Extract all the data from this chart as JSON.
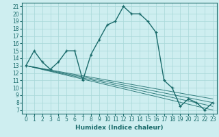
{
  "xlabel": "Humidex (Indice chaleur)",
  "bg_color": "#ceeef0",
  "line_color": "#1a6b6b",
  "grid_color": "#a8d8d8",
  "xlim": [
    -0.5,
    23.5
  ],
  "ylim": [
    6.5,
    21.5
  ],
  "xticks": [
    0,
    1,
    2,
    3,
    4,
    5,
    6,
    7,
    8,
    9,
    10,
    11,
    12,
    13,
    14,
    15,
    16,
    17,
    18,
    19,
    20,
    21,
    22,
    23
  ],
  "yticks": [
    7,
    8,
    9,
    10,
    11,
    12,
    13,
    14,
    15,
    16,
    17,
    18,
    19,
    20,
    21
  ],
  "series": [
    [
      0,
      13
    ],
    [
      1,
      15
    ],
    [
      2,
      13.5
    ],
    [
      3,
      12.5
    ],
    [
      4,
      13.5
    ],
    [
      5,
      15
    ],
    [
      6,
      15
    ],
    [
      7,
      11
    ],
    [
      8,
      14.5
    ],
    [
      9,
      16.5
    ],
    [
      10,
      18.5
    ],
    [
      11,
      19
    ],
    [
      12,
      21
    ],
    [
      13,
      20
    ],
    [
      14,
      20
    ],
    [
      15,
      19
    ],
    [
      16,
      17.5
    ],
    [
      17,
      11
    ],
    [
      18,
      10
    ],
    [
      19,
      7.5
    ],
    [
      20,
      8.5
    ],
    [
      21,
      8
    ],
    [
      22,
      7
    ],
    [
      23,
      8
    ]
  ],
  "regression_lines": [
    {
      "x": [
        0,
        23
      ],
      "y": [
        13.0,
        7.0
      ]
    },
    {
      "x": [
        0,
        23
      ],
      "y": [
        13.0,
        7.5
      ]
    },
    {
      "x": [
        0,
        23
      ],
      "y": [
        13.0,
        8.0
      ]
    },
    {
      "x": [
        0,
        23
      ],
      "y": [
        13.0,
        8.5
      ]
    }
  ],
  "tick_fontsize": 5.5,
  "xlabel_fontsize": 6.5
}
